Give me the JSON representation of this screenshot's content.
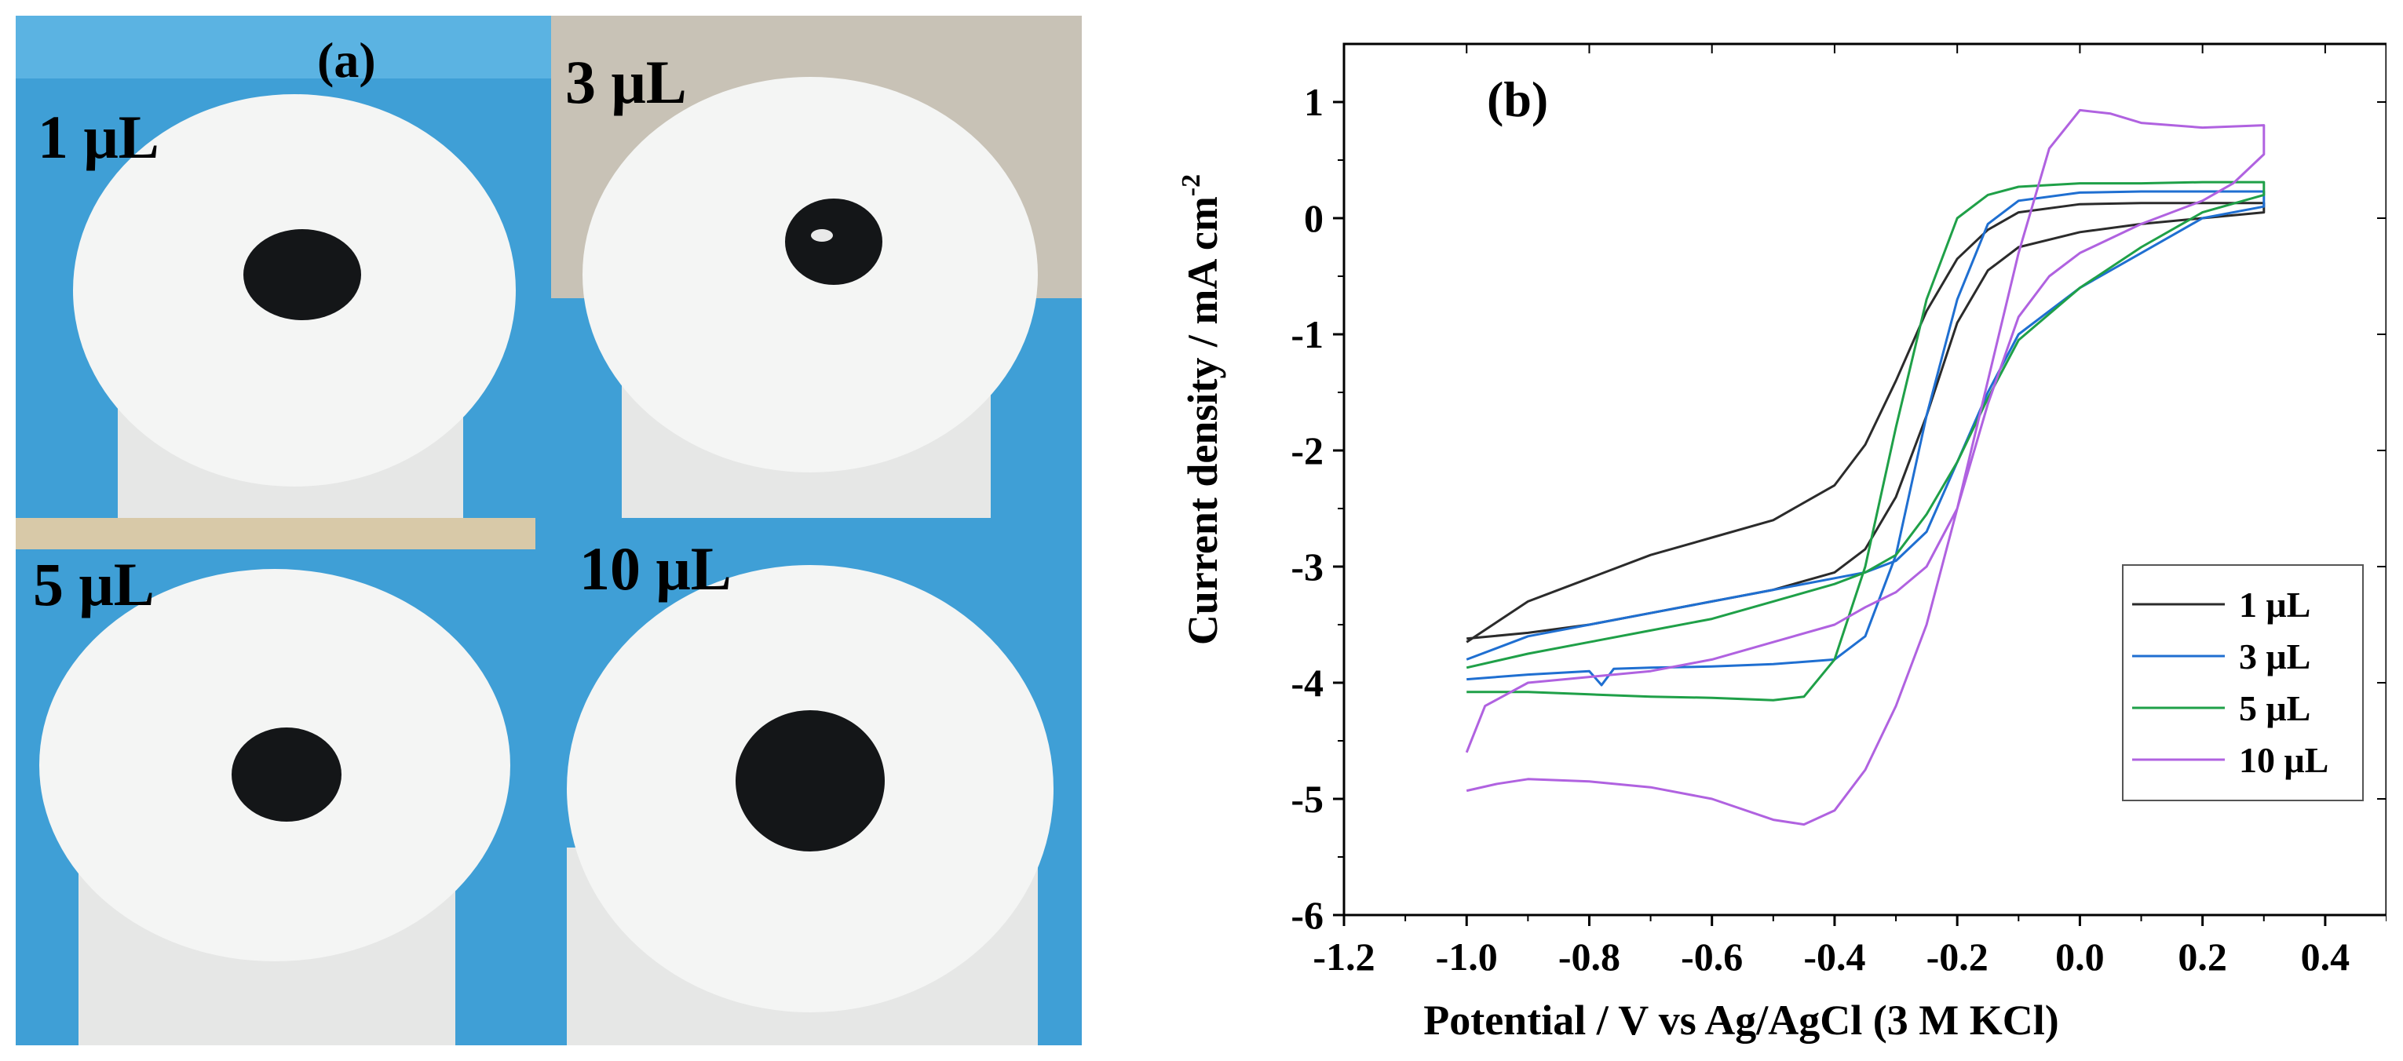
{
  "figure": {
    "panel_a_label": "(a)",
    "panel_b_label": "(b)"
  },
  "photos": [
    {
      "label": "1 μL",
      "dot": "small"
    },
    {
      "label": "3 μL",
      "dot": "small"
    },
    {
      "label": "5 μL",
      "dot": "medium"
    },
    {
      "label": "10 μL",
      "dot": "large"
    }
  ],
  "colors": {
    "glove_blue": "#3f9fd6",
    "teflon_white": "#f4f5f4",
    "carbon_black": "#141618",
    "s1": "#2b2b2b",
    "s3": "#1f6fd1",
    "s5": "#1fa048",
    "s10": "#b062e0"
  },
  "chart_data": {
    "type": "line",
    "title": "",
    "panel_label": "(b)",
    "xlabel": "Potential / V vs Ag/AgCl (3 M KCl)",
    "ylabel": "Current density / mA cm",
    "ylabel_sup": "-2",
    "xlim": [
      -1.2,
      0.5
    ],
    "ylim": [
      -6,
      1.5
    ],
    "xticks": [
      -1.2,
      -1.0,
      -0.8,
      -0.6,
      -0.4,
      -0.2,
      0.0,
      0.2,
      0.4
    ],
    "xtick_labels": [
      "-1.2",
      "-1.0",
      "-0.8",
      "-0.6",
      "-0.4",
      "-0.2",
      "0.0",
      "0.2",
      "0.4"
    ],
    "yticks": [
      -6,
      -5,
      -4,
      -3,
      -2,
      -1,
      0,
      1
    ],
    "ytick_labels": [
      "-6",
      "-5",
      "-4",
      "-3",
      "-2",
      "-1",
      "0",
      "1"
    ],
    "legend_position": "right",
    "series": [
      {
        "name": "1  μL",
        "color": "#2b2b2b",
        "x": [
          -1.0,
          -0.9,
          -0.8,
          -0.7,
          -0.6,
          -0.5,
          -0.4,
          -0.35,
          -0.3,
          -0.25,
          -0.2,
          -0.15,
          -0.1,
          0.0,
          0.1,
          0.2,
          0.3,
          0.3,
          0.2,
          0.1,
          0.0,
          -0.1,
          -0.15,
          -0.2,
          -0.25,
          -0.3,
          -0.35,
          -0.4,
          -0.5,
          -0.6,
          -0.7,
          -0.8,
          -0.9,
          -1.0
        ],
        "y": [
          -3.65,
          -3.3,
          -3.1,
          -2.9,
          -2.75,
          -2.6,
          -2.3,
          -1.95,
          -1.4,
          -0.8,
          -0.35,
          -0.1,
          0.05,
          0.12,
          0.13,
          0.13,
          0.13,
          0.05,
          0.0,
          -0.05,
          -0.12,
          -0.25,
          -0.45,
          -0.9,
          -1.7,
          -2.4,
          -2.85,
          -3.05,
          -3.2,
          -3.3,
          -3.4,
          -3.5,
          -3.57,
          -3.62
        ]
      },
      {
        "name": "3  μL",
        "color": "#1f6fd1",
        "x": [
          -1.0,
          -0.9,
          -0.8,
          -0.78,
          -0.76,
          -0.7,
          -0.6,
          -0.5,
          -0.4,
          -0.35,
          -0.3,
          -0.25,
          -0.2,
          -0.15,
          -0.1,
          0.0,
          0.1,
          0.2,
          0.3,
          0.3,
          0.2,
          0.1,
          0.0,
          -0.1,
          -0.15,
          -0.2,
          -0.25,
          -0.3,
          -0.35,
          -0.4,
          -0.5,
          -0.6,
          -0.7,
          -0.8,
          -0.9,
          -1.0
        ],
        "y": [
          -3.97,
          -3.93,
          -3.9,
          -4.02,
          -3.88,
          -3.87,
          -3.86,
          -3.84,
          -3.8,
          -3.6,
          -2.9,
          -1.7,
          -0.7,
          -0.05,
          0.15,
          0.22,
          0.23,
          0.23,
          0.23,
          0.1,
          0.0,
          -0.3,
          -0.6,
          -1.0,
          -1.5,
          -2.1,
          -2.7,
          -2.95,
          -3.05,
          -3.1,
          -3.2,
          -3.3,
          -3.4,
          -3.5,
          -3.6,
          -3.8
        ]
      },
      {
        "name": "5  μL",
        "color": "#1fa048",
        "x": [
          -1.0,
          -0.9,
          -0.8,
          -0.7,
          -0.6,
          -0.5,
          -0.45,
          -0.4,
          -0.35,
          -0.3,
          -0.25,
          -0.2,
          -0.15,
          -0.1,
          0.0,
          0.1,
          0.2,
          0.3,
          0.3,
          0.2,
          0.1,
          0.0,
          -0.1,
          -0.15,
          -0.2,
          -0.25,
          -0.3,
          -0.35,
          -0.4,
          -0.5,
          -0.6,
          -0.7,
          -0.8,
          -0.9,
          -1.0
        ],
        "y": [
          -4.08,
          -4.08,
          -4.1,
          -4.12,
          -4.13,
          -4.15,
          -4.12,
          -3.8,
          -3.0,
          -1.8,
          -0.7,
          0.0,
          0.2,
          0.27,
          0.3,
          0.3,
          0.31,
          0.31,
          0.2,
          0.05,
          -0.25,
          -0.6,
          -1.05,
          -1.55,
          -2.1,
          -2.55,
          -2.9,
          -3.05,
          -3.15,
          -3.3,
          -3.45,
          -3.55,
          -3.65,
          -3.75,
          -3.87
        ]
      },
      {
        "name": "10  μL",
        "color": "#b062e0",
        "x": [
          -1.0,
          -0.95,
          -0.9,
          -0.8,
          -0.7,
          -0.6,
          -0.5,
          -0.45,
          -0.4,
          -0.35,
          -0.3,
          -0.25,
          -0.2,
          -0.15,
          -0.1,
          -0.05,
          0.0,
          0.05,
          0.1,
          0.2,
          0.3,
          0.3,
          0.25,
          0.2,
          0.1,
          0.0,
          -0.05,
          -0.1,
          -0.15,
          -0.2,
          -0.25,
          -0.3,
          -0.35,
          -0.4,
          -0.5,
          -0.6,
          -0.7,
          -0.8,
          -0.9,
          -0.97,
          -1.0
        ],
        "y": [
          -4.93,
          -4.87,
          -4.83,
          -4.85,
          -4.9,
          -5.0,
          -5.18,
          -5.22,
          -5.1,
          -4.75,
          -4.2,
          -3.5,
          -2.5,
          -1.4,
          -0.3,
          0.6,
          0.93,
          0.9,
          0.82,
          0.78,
          0.8,
          0.55,
          0.3,
          0.15,
          -0.05,
          -0.3,
          -0.5,
          -0.85,
          -1.6,
          -2.5,
          -3.0,
          -3.22,
          -3.35,
          -3.5,
          -3.65,
          -3.8,
          -3.9,
          -3.95,
          -4.0,
          -4.2,
          -4.6
        ]
      }
    ]
  }
}
